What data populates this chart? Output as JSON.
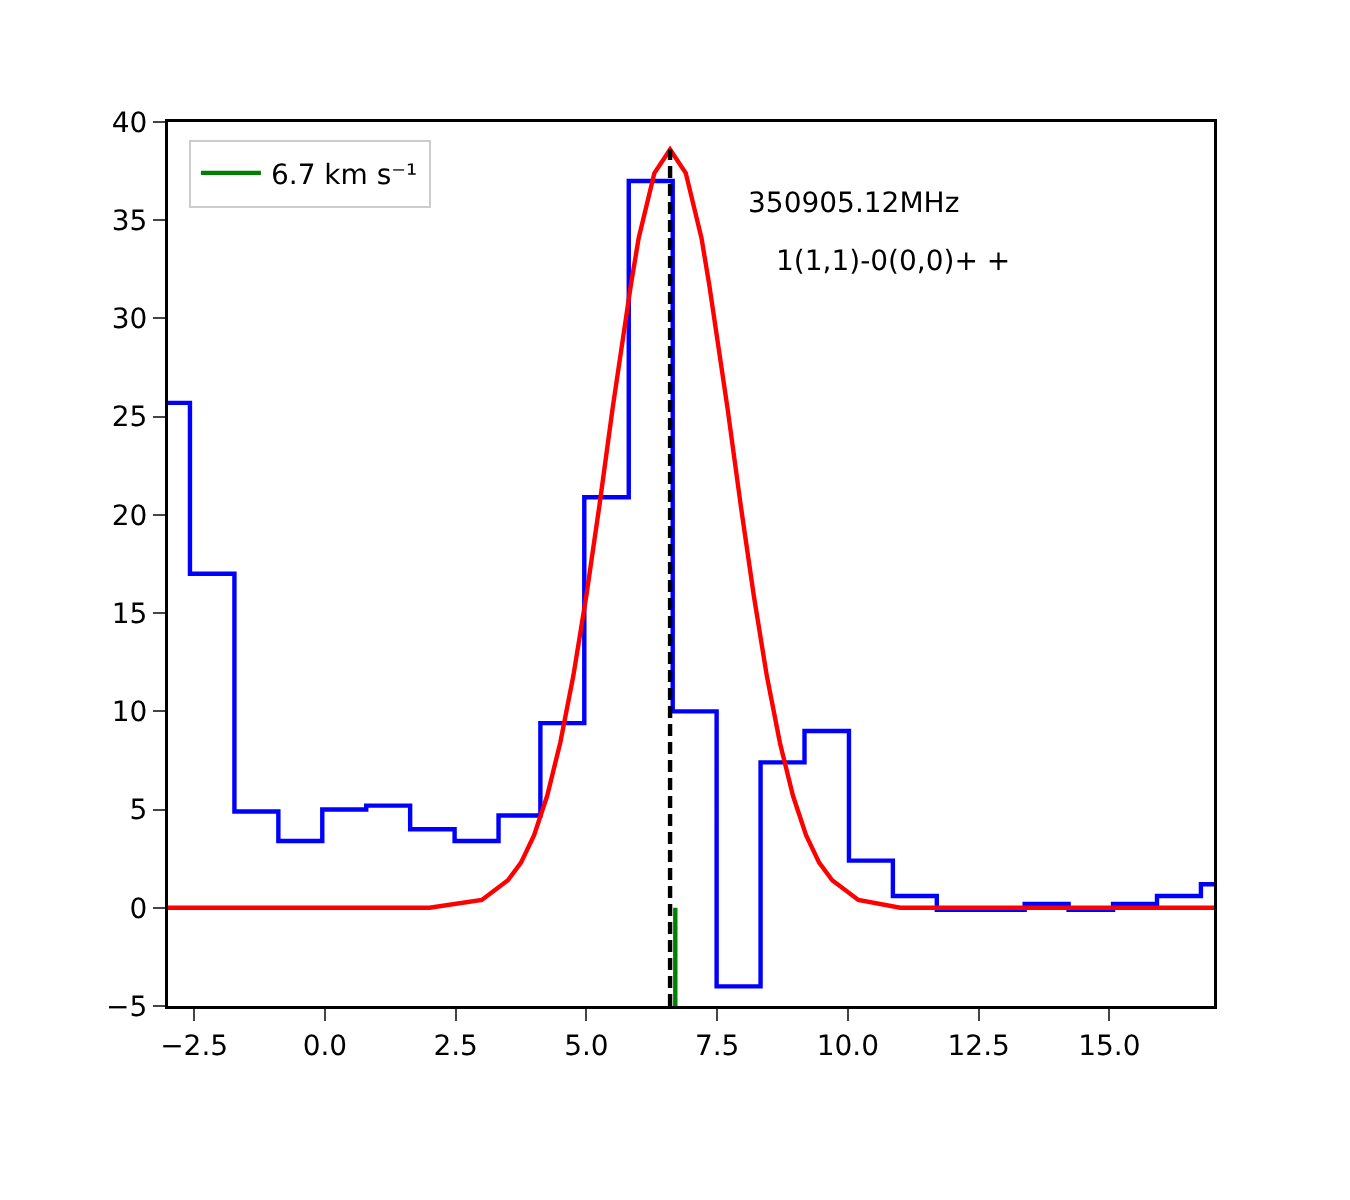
{
  "chart_data": {
    "type": "step",
    "annotations": [
      "350905.12MHz",
      "1(1,1)-0(0,0)+ +"
    ],
    "series": [
      {
        "color": "#0000ff",
        "x": [
          -3.0,
          -2.58,
          -1.73,
          -0.89,
          -0.05,
          0.79,
          1.63,
          2.48,
          3.32,
          4.12,
          4.96,
          5.81,
          6.65,
          7.49,
          8.33,
          9.17,
          10.02,
          10.86,
          11.7,
          12.54,
          13.38,
          14.22,
          15.07,
          15.91,
          16.75,
          17.0
        ],
        "values": [
          25.7,
          17.0,
          4.9,
          3.4,
          5.0,
          5.2,
          4.0,
          3.4,
          4.7,
          9.4,
          20.9,
          37.0,
          10.0,
          -4.0,
          7.4,
          9.0,
          2.4,
          0.6,
          -0.1,
          -0.1,
          0.2,
          -0.1,
          0.2,
          0.6,
          1.2,
          1.2
        ]
      },
      {
        "type": "line",
        "color": "#ff0000",
        "x": [
          -3,
          2,
          3,
          3.5,
          3.75,
          4,
          4.25,
          4.5,
          4.75,
          5,
          5.25,
          5.5,
          5.85,
          6,
          6.3,
          6.6,
          6.9,
          7.2,
          7.35,
          7.7,
          7.95,
          8.2,
          8.45,
          8.7,
          8.95,
          9.2,
          9.45,
          9.7,
          10.2,
          11,
          12,
          17
        ],
        "values": [
          0,
          0,
          0.4,
          1.4,
          2.3,
          3.7,
          5.7,
          8.4,
          11.8,
          15.9,
          20.5,
          25.4,
          31.7,
          34.1,
          37.4,
          38.6,
          37.4,
          34.1,
          31.7,
          25.4,
          20.5,
          15.9,
          11.8,
          8.4,
          5.7,
          3.7,
          2.3,
          1.4,
          0.4,
          0,
          0,
          0
        ]
      },
      {
        "type": "line",
        "color": "#000000",
        "line_style": "dashed",
        "x": [
          6.6,
          6.6
        ],
        "values": [
          -5,
          38.6
        ]
      },
      {
        "type": "line",
        "color": "#008000",
        "name": "6.7 km s⁻¹",
        "x": [
          6.7,
          6.7
        ],
        "values": [
          -5,
          0
        ]
      }
    ],
    "xlim": [
      -3,
      17
    ],
    "xticks": [
      {
        "value": -2.5,
        "label": "−2.5"
      },
      {
        "value": 0,
        "label": "0.0"
      },
      {
        "value": 2.5,
        "label": "2.5"
      },
      {
        "value": 5,
        "label": "5.0"
      },
      {
        "value": 7.5,
        "label": "7.5"
      },
      {
        "value": 10,
        "label": "10.0"
      },
      {
        "value": 12.5,
        "label": "12.5"
      },
      {
        "value": 15,
        "label": "15.0"
      }
    ],
    "ylim": [
      -5,
      40
    ],
    "yticks": [
      {
        "value": -5,
        "label": "−5"
      },
      0,
      5,
      10,
      15,
      20,
      25,
      30,
      35,
      40
    ],
    "grid": false,
    "legend": "top left"
  }
}
